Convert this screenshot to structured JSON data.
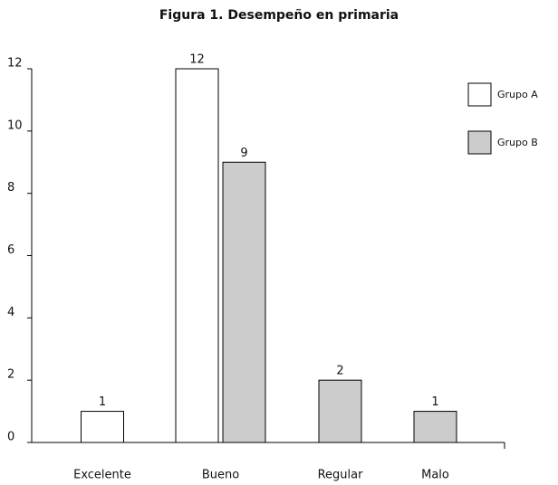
{
  "chart_data": {
    "type": "bar",
    "title": "Figura 1. Desempeño en primaria",
    "categories": [
      "Excelente",
      "Bueno",
      "Regular",
      "Malo"
    ],
    "series": [
      {
        "name": "Grupo A",
        "color": "#ffffff",
        "values": [
          1,
          12,
          null,
          null
        ]
      },
      {
        "name": "Grupo B",
        "color": "#cccccc",
        "values": [
          null,
          9,
          2,
          1
        ]
      }
    ],
    "ylim": [
      0,
      12
    ],
    "yticks": [
      0,
      2,
      4,
      6,
      8,
      10,
      12
    ],
    "legend": "upper right"
  }
}
